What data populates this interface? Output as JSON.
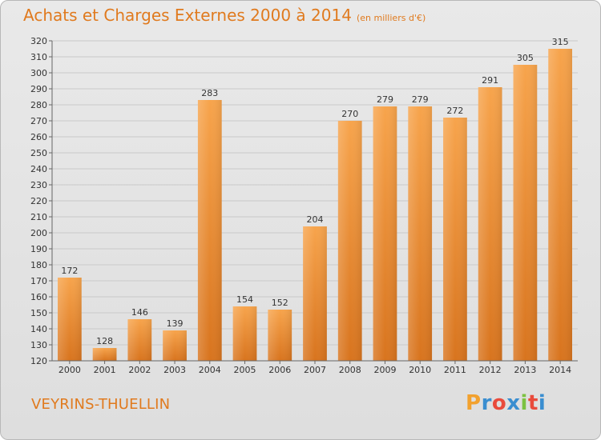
{
  "title": "Achats et Charges Externes 2000 à 2014",
  "subtitle": "(en milliers d'€)",
  "commune": "VEYRINS-THUELLIN",
  "logo": "Proxiti",
  "colors": {
    "bar_light": "#f7a44c",
    "bar_dark": "#d8741e",
    "text_orange": "#e07a1e"
  },
  "chart_data": {
    "type": "bar",
    "title": "Achats et Charges Externes 2000 à 2014",
    "subtitle": "(en milliers d'€)",
    "categories": [
      "2000",
      "2001",
      "2002",
      "2003",
      "2004",
      "2005",
      "2006",
      "2007",
      "2008",
      "2009",
      "2010",
      "2011",
      "2012",
      "2013",
      "2014"
    ],
    "values": [
      172,
      128,
      146,
      139,
      283,
      154,
      152,
      204,
      270,
      279,
      279,
      272,
      291,
      305,
      315
    ],
    "ylim": [
      120,
      320
    ],
    "yticks": [
      120,
      130,
      140,
      150,
      160,
      170,
      180,
      190,
      200,
      210,
      220,
      230,
      240,
      250,
      260,
      270,
      280,
      290,
      300,
      310,
      320
    ],
    "grid": true,
    "data_labels": true
  }
}
